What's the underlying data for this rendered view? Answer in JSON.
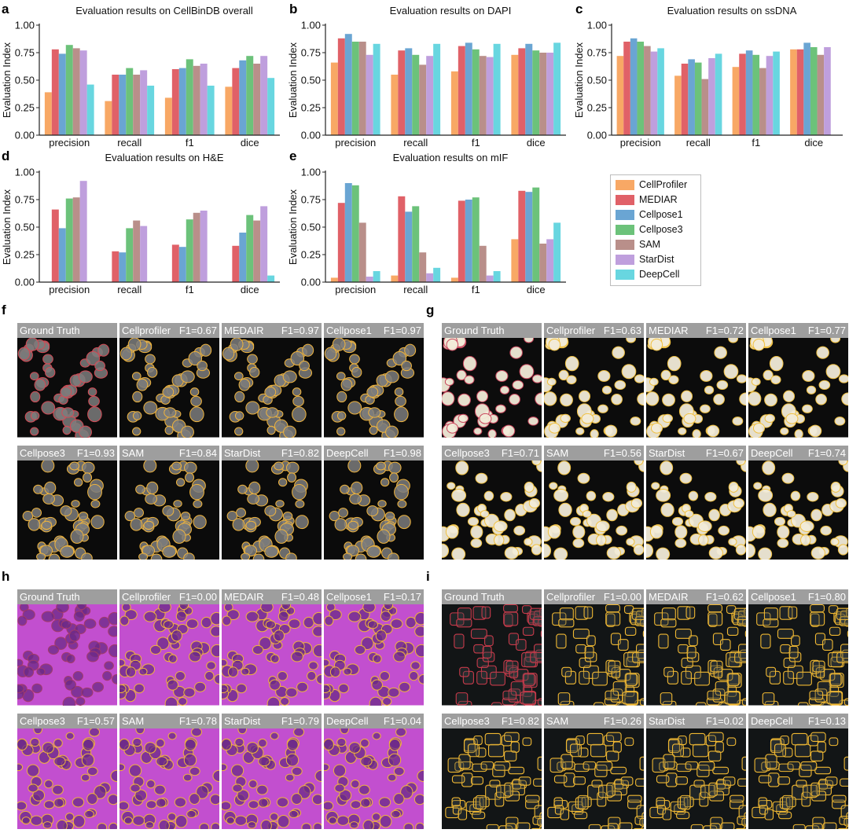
{
  "colors": {
    "CellProfiler": "#f8a865",
    "MEDIAR": "#e06168",
    "Cellpose1": "#6aa5d3",
    "Cellpose3": "#6cc27a",
    "SAM": "#b98f8a",
    "StarDist": "#bf9fdd",
    "DeepCell": "#68d6e0"
  },
  "panel_letters": {
    "a": "a",
    "b": "b",
    "c": "c",
    "d": "d",
    "e": "e",
    "f": "f",
    "g": "g",
    "h": "h",
    "i": "i"
  },
  "legend": {
    "items": [
      {
        "label": "CellProfiler",
        "color": "#f8a865"
      },
      {
        "label": "MEDIAR",
        "color": "#e06168"
      },
      {
        "label": "Cellpose1",
        "color": "#6aa5d3"
      },
      {
        "label": "Cellpose3",
        "color": "#6cc27a"
      },
      {
        "label": "SAM",
        "color": "#b98f8a"
      },
      {
        "label": "StarDist",
        "color": "#bf9fdd"
      },
      {
        "label": "DeepCell",
        "color": "#68d6e0"
      }
    ]
  },
  "chart_data": [
    {
      "id": "a",
      "type": "bar",
      "title": "Evaluation results on CellBinDB overall",
      "ylabel": "Evaluation Index",
      "ylim": [
        0,
        1
      ],
      "yticks": [
        "0.00",
        "0.25",
        "0.50",
        "0.75",
        "1.00"
      ],
      "categories": [
        "precision",
        "recall",
        "f1",
        "dice"
      ],
      "series": [
        {
          "name": "CellProfiler",
          "values": [
            0.39,
            0.31,
            0.34,
            0.44
          ]
        },
        {
          "name": "MEDIAR",
          "values": [
            0.78,
            0.55,
            0.6,
            0.61
          ]
        },
        {
          "name": "Cellpose1",
          "values": [
            0.74,
            0.55,
            0.61,
            0.68
          ]
        },
        {
          "name": "Cellpose3",
          "values": [
            0.82,
            0.61,
            0.69,
            0.72
          ]
        },
        {
          "name": "SAM",
          "values": [
            0.79,
            0.55,
            0.63,
            0.65
          ]
        },
        {
          "name": "StarDist",
          "values": [
            0.77,
            0.59,
            0.65,
            0.72
          ]
        },
        {
          "name": "DeepCell",
          "values": [
            0.46,
            0.45,
            0.45,
            0.52
          ]
        }
      ]
    },
    {
      "id": "b",
      "type": "bar",
      "title": "Evaluation results on DAPI",
      "ylabel": "Evaluation Index",
      "ylim": [
        0,
        1
      ],
      "yticks": [
        "0.00",
        "0.25",
        "0.50",
        "0.75",
        "1.00"
      ],
      "categories": [
        "precision",
        "recall",
        "f1",
        "dice"
      ],
      "series": [
        {
          "name": "CellProfiler",
          "values": [
            0.66,
            0.55,
            0.58,
            0.73
          ]
        },
        {
          "name": "MEDIAR",
          "values": [
            0.88,
            0.77,
            0.81,
            0.79
          ]
        },
        {
          "name": "Cellpose1",
          "values": [
            0.92,
            0.79,
            0.84,
            0.83
          ]
        },
        {
          "name": "Cellpose3",
          "values": [
            0.85,
            0.73,
            0.78,
            0.77
          ]
        },
        {
          "name": "SAM",
          "values": [
            0.85,
            0.64,
            0.72,
            0.75
          ]
        },
        {
          "name": "StarDist",
          "values": [
            0.73,
            0.72,
            0.71,
            0.75
          ]
        },
        {
          "name": "DeepCell",
          "values": [
            0.83,
            0.83,
            0.83,
            0.84
          ]
        }
      ]
    },
    {
      "id": "c",
      "type": "bar",
      "title": "Evaluation results on ssDNA",
      "ylabel": "Evaluation Index",
      "ylim": [
        0,
        1
      ],
      "yticks": [
        "0.00",
        "0.25",
        "0.50",
        "0.75",
        "1.00"
      ],
      "categories": [
        "precision",
        "recall",
        "f1",
        "dice"
      ],
      "series": [
        {
          "name": "CellProfiler",
          "values": [
            0.72,
            0.54,
            0.62,
            0.78
          ]
        },
        {
          "name": "MEDIAR",
          "values": [
            0.85,
            0.65,
            0.74,
            0.78
          ]
        },
        {
          "name": "Cellpose1",
          "values": [
            0.88,
            0.69,
            0.77,
            0.84
          ]
        },
        {
          "name": "Cellpose3",
          "values": [
            0.85,
            0.66,
            0.73,
            0.8
          ]
        },
        {
          "name": "SAM",
          "values": [
            0.81,
            0.51,
            0.61,
            0.73
          ]
        },
        {
          "name": "StarDist",
          "values": [
            0.76,
            0.7,
            0.72,
            0.8
          ]
        },
        {
          "name": "DeepCell",
          "values": [
            0.79,
            0.74,
            0.76,
            0.0
          ]
        }
      ]
    },
    {
      "id": "d",
      "type": "bar",
      "title": "Evaluation results on H&E",
      "ylabel": "Evaluation Index",
      "ylim": [
        0,
        1
      ],
      "yticks": [
        "0.00",
        "0.25",
        "0.50",
        "0.75",
        "1.00"
      ],
      "categories": [
        "precision",
        "recall",
        "f1",
        "dice"
      ],
      "series": [
        {
          "name": "CellProfiler",
          "values": [
            0.0,
            0.0,
            0.0,
            0.0
          ]
        },
        {
          "name": "MEDIAR",
          "values": [
            0.66,
            0.28,
            0.34,
            0.33
          ]
        },
        {
          "name": "Cellpose1",
          "values": [
            0.49,
            0.27,
            0.32,
            0.45
          ]
        },
        {
          "name": "Cellpose3",
          "values": [
            0.76,
            0.49,
            0.57,
            0.61
          ]
        },
        {
          "name": "SAM",
          "values": [
            0.77,
            0.56,
            0.63,
            0.56
          ]
        },
        {
          "name": "StarDist",
          "values": [
            0.92,
            0.51,
            0.65,
            0.69
          ]
        },
        {
          "name": "DeepCell",
          "values": [
            0.0,
            0.0,
            0.0,
            0.06
          ]
        }
      ]
    },
    {
      "id": "e",
      "type": "bar",
      "title": "Evaluation results on mIF",
      "ylabel": "Evaluation Index",
      "ylim": [
        0,
        1
      ],
      "yticks": [
        "0.00",
        "0.25",
        "0.50",
        "0.75",
        "1.00"
      ],
      "categories": [
        "precision",
        "recall",
        "f1",
        "dice"
      ],
      "series": [
        {
          "name": "CellProfiler",
          "values": [
            0.04,
            0.06,
            0.04,
            0.39
          ]
        },
        {
          "name": "MEDIAR",
          "values": [
            0.72,
            0.78,
            0.74,
            0.83
          ]
        },
        {
          "name": "Cellpose1",
          "values": [
            0.9,
            0.64,
            0.75,
            0.82
          ]
        },
        {
          "name": "Cellpose3",
          "values": [
            0.88,
            0.69,
            0.77,
            0.86
          ]
        },
        {
          "name": "SAM",
          "values": [
            0.54,
            0.27,
            0.33,
            0.35
          ]
        },
        {
          "name": "StarDist",
          "values": [
            0.05,
            0.08,
            0.06,
            0.39
          ]
        },
        {
          "name": "DeepCell",
          "values": [
            0.1,
            0.13,
            0.1,
            0.54
          ]
        }
      ]
    }
  ],
  "image_panels": [
    {
      "id": "f",
      "style": "dapi",
      "tiles": [
        {
          "left": "Ground Truth",
          "right": ""
        },
        {
          "left": "Cellprofiler",
          "right": "F1=0.67"
        },
        {
          "left": "MEDAIR",
          "right": "F1=0.97"
        },
        {
          "left": "Cellpose1",
          "right": "F1=0.97"
        },
        {
          "left": "Cellpose3",
          "right": "F1=0.93"
        },
        {
          "left": "SAM",
          "right": "F1=0.84"
        },
        {
          "left": "StarDist",
          "right": "F1=0.82"
        },
        {
          "left": "DeepCell",
          "right": "F1=0.98"
        }
      ]
    },
    {
      "id": "g",
      "style": "ssdna",
      "tiles": [
        {
          "left": "Ground Truth",
          "right": ""
        },
        {
          "left": "Cellprofiler",
          "right": "F1=0.63"
        },
        {
          "left": "MEDIAR",
          "right": "F1=0.72"
        },
        {
          "left": "Cellpose1",
          "right": "F1=0.77"
        },
        {
          "left": "Cellpose3",
          "right": "F1=0.71"
        },
        {
          "left": "SAM",
          "right": "F1=0.56"
        },
        {
          "left": "StarDist",
          "right": "F1=0.67"
        },
        {
          "left": "DeepCell",
          "right": "F1=0.74"
        }
      ]
    },
    {
      "id": "h",
      "style": "he",
      "tiles": [
        {
          "left": "Ground Truth",
          "right": ""
        },
        {
          "left": "Cellprofiler",
          "right": "F1=0.00"
        },
        {
          "left": "MEDAIR",
          "right": "F1=0.48"
        },
        {
          "left": "Cellpose1",
          "right": "F1=0.17"
        },
        {
          "left": "Cellpose3",
          "right": "F1=0.57"
        },
        {
          "left": "SAM",
          "right": "F1=0.78"
        },
        {
          "left": "StarDist",
          "right": "F1=0.79"
        },
        {
          "left": "DeepCell",
          "right": "F1=0.04"
        }
      ]
    },
    {
      "id": "i",
      "style": "mif",
      "tiles": [
        {
          "left": "Ground Truth",
          "right": ""
        },
        {
          "left": "Cellprofiler",
          "right": "F1=0.00"
        },
        {
          "left": "MEDAIR",
          "right": "F1=0.62"
        },
        {
          "left": "Cellpose1",
          "right": "F1=0.80"
        },
        {
          "left": "Cellpose3",
          "right": "F1=0.82"
        },
        {
          "left": "SAM",
          "right": "F1=0.26"
        },
        {
          "left": "StarDist",
          "right": "F1=0.02"
        },
        {
          "left": "DeepCell",
          "right": "F1=0.13"
        }
      ]
    }
  ]
}
